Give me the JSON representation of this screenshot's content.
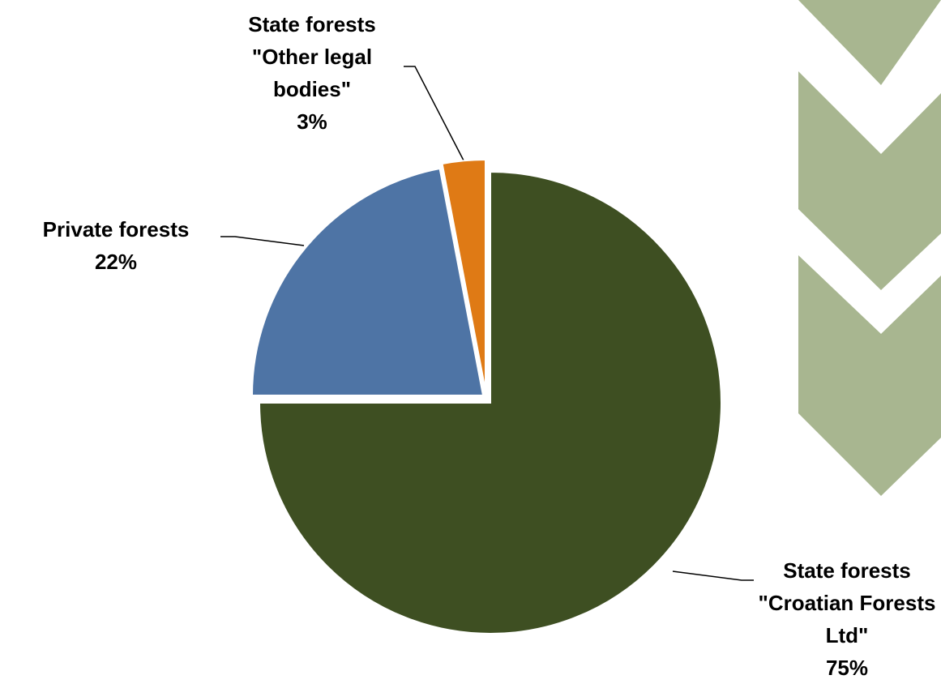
{
  "chart_data": {
    "type": "pie",
    "categories": [
      "State forests \"Croatian Forests Ltd\"",
      "Private forests",
      "State forests \"Other legal bodies\""
    ],
    "values": [
      75,
      22,
      3
    ],
    "value_labels": [
      "75%",
      "22%",
      "3%"
    ],
    "colors": [
      "#3e4f22",
      "#4e74a5",
      "#df7a15"
    ]
  }
}
